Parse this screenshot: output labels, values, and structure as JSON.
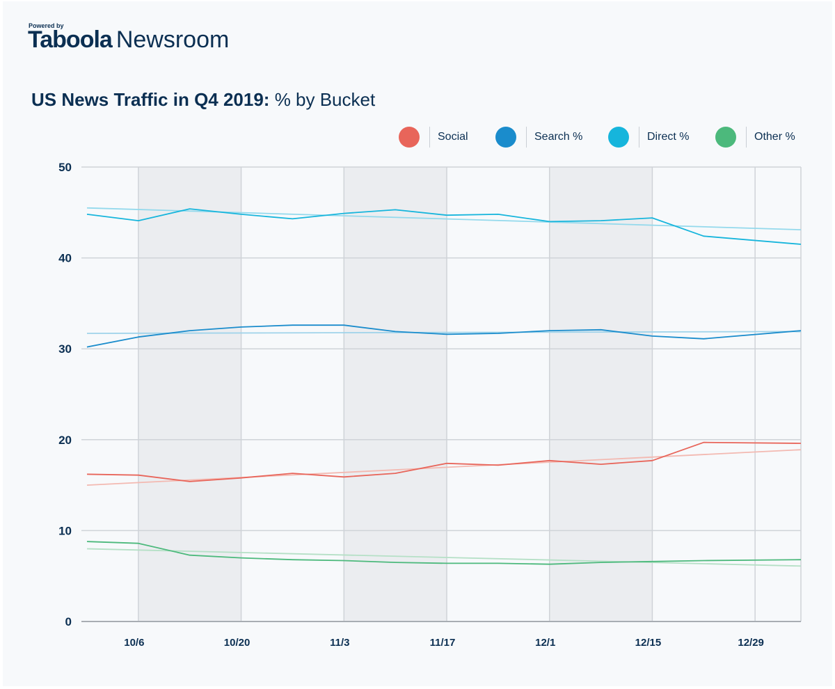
{
  "header": {
    "powered_by": "Powered by",
    "logo": "Taboola",
    "product": "Newsroom"
  },
  "title": {
    "bold": "US News Traffic in Q4 2019:",
    "rest": " % by Bucket"
  },
  "chart_data": {
    "type": "line",
    "title": "US News Traffic in Q4 2019: % by Bucket",
    "xlabel": "",
    "ylabel": "",
    "ylim": [
      0,
      50
    ],
    "yticks": [
      0,
      10,
      20,
      30,
      40,
      50
    ],
    "x_tick_labels": [
      "10/6",
      "10/20",
      "11/3",
      "11/17",
      "12/1",
      "12/15",
      "12/29"
    ],
    "x": [
      "9/29",
      "10/6",
      "10/13",
      "10/20",
      "10/27",
      "11/3",
      "11/10",
      "11/17",
      "11/24",
      "12/1",
      "12/8",
      "12/15",
      "12/22",
      "12/29"
    ],
    "grid": true,
    "legend_position": "top-right",
    "shaded_bands": [
      [
        "10/6",
        "10/20"
      ],
      [
        "11/3",
        "11/17"
      ],
      [
        "12/1",
        "12/15"
      ]
    ],
    "series": [
      {
        "name": "Social",
        "color": "#e8655a",
        "trend_color": "#f3b9b1",
        "values": [
          16.2,
          16.1,
          15.4,
          15.8,
          16.3,
          15.9,
          16.3,
          17.4,
          17.2,
          17.7,
          17.3,
          17.7,
          19.7,
          19.6
        ],
        "trend": [
          15.0,
          18.9
        ]
      },
      {
        "name": "Search %",
        "color": "#1a8ccc",
        "trend_color": "#9fd3ea",
        "values": [
          30.2,
          31.3,
          32.0,
          32.4,
          32.6,
          32.6,
          31.9,
          31.6,
          31.7,
          32.0,
          32.1,
          31.4,
          31.1,
          32.0
        ],
        "trend": [
          31.7,
          31.9
        ]
      },
      {
        "name": "Direct %",
        "color": "#16b5dc",
        "trend_color": "#93d9ec",
        "values": [
          44.8,
          44.1,
          45.4,
          44.8,
          44.3,
          44.9,
          45.3,
          44.7,
          44.8,
          44.0,
          44.1,
          44.4,
          42.4,
          41.5
        ],
        "trend": [
          45.5,
          43.1
        ]
      },
      {
        "name": "Other %",
        "color": "#4cb97c",
        "trend_color": "#b5e0c6",
        "values": [
          8.8,
          8.6,
          7.3,
          7.0,
          6.8,
          6.7,
          6.5,
          6.4,
          6.4,
          6.3,
          6.5,
          6.6,
          6.7,
          6.8
        ],
        "trend": [
          8.0,
          6.1
        ]
      }
    ]
  }
}
